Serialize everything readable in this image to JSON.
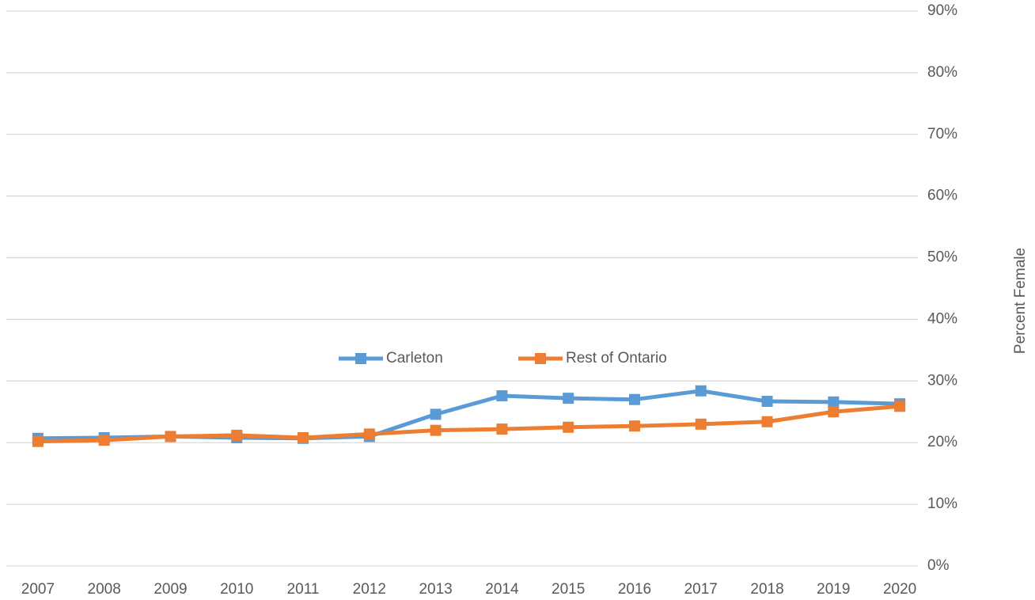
{
  "chart_data": {
    "type": "line",
    "y_axis_label": "Percent Female",
    "categories": [
      "2007",
      "2008",
      "2009",
      "2010",
      "2011",
      "2012",
      "2013",
      "2014",
      "2015",
      "2016",
      "2017",
      "2018",
      "2019",
      "2020"
    ],
    "series": [
      {
        "name": "Carleton",
        "color": "#5b9bd5",
        "values": [
          20.7,
          20.8,
          21.0,
          20.8,
          20.7,
          21.0,
          24.6,
          27.6,
          27.2,
          27.0,
          28.4,
          26.7,
          26.6,
          26.3
        ]
      },
      {
        "name": "Rest of Ontario",
        "color": "#ed7d31",
        "values": [
          20.2,
          20.4,
          21.0,
          21.2,
          20.8,
          21.4,
          22.0,
          22.2,
          22.5,
          22.7,
          23.0,
          23.4,
          25.0,
          25.9
        ]
      }
    ],
    "ylim": [
      0,
      90
    ],
    "yticks": [
      {
        "value": 0,
        "label": "0%"
      },
      {
        "value": 10,
        "label": "10%"
      },
      {
        "value": 20,
        "label": "20%"
      },
      {
        "value": 30,
        "label": "30%"
      },
      {
        "value": 40,
        "label": "40%"
      },
      {
        "value": 50,
        "label": "50%"
      },
      {
        "value": 60,
        "label": "60%"
      },
      {
        "value": 70,
        "label": "70%"
      },
      {
        "value": 80,
        "label": "80%"
      },
      {
        "value": 90,
        "label": "90%"
      }
    ],
    "grid": true
  }
}
